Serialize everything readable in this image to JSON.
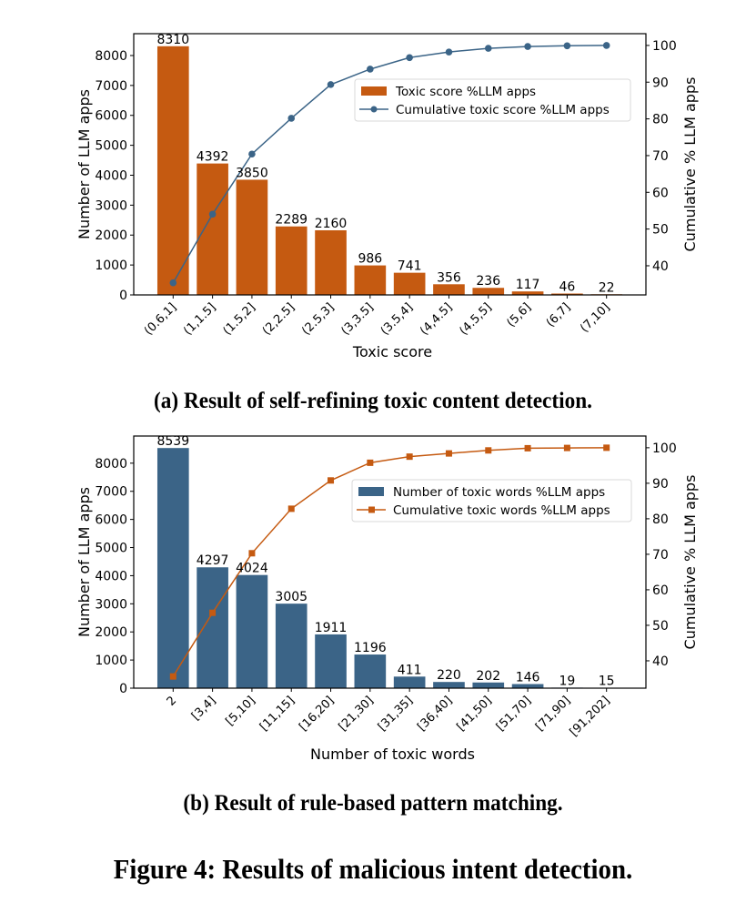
{
  "figure": {
    "caption": "Figure 4: Results of malicious intent detection."
  },
  "chart_data": [
    {
      "id": "a",
      "type": "bar",
      "caption": "(a) Result of self-refining toxic content detection.",
      "title": "",
      "xlabel": "Toxic score",
      "ylabel": "Number of LLM apps",
      "ylabel_right": "Cumulative % LLM apps",
      "categories": [
        "(0.6,1]",
        "(1,1.5]",
        "(1.5,2]",
        "(2,2.5]",
        "(2.5,3]",
        "(3,3.5]",
        "(3.5,4]",
        "(4,4.5]",
        "(4.5,5]",
        "(5,6]",
        "(6,7]",
        "(7,10]"
      ],
      "series": [
        {
          "name": "Toxic score %LLM apps",
          "type": "bar",
          "axis": "left",
          "color": "#c55a11",
          "values": [
            8310,
            4392,
            3850,
            2289,
            2160,
            986,
            741,
            356,
            236,
            117,
            46,
            22
          ],
          "data_labels": [
            "8310",
            "4392",
            "3850",
            "2289",
            "2160",
            "986",
            "741",
            "356",
            "236",
            "117",
            "46",
            "22"
          ]
        },
        {
          "name": "Cumulative toxic score %LLM apps",
          "type": "line",
          "axis": "right",
          "marker": "circle",
          "color": "#3b6487",
          "values": [
            35.35,
            54.04,
            70.42,
            80.16,
            89.35,
            93.54,
            96.69,
            98.21,
            99.21,
            99.71,
            99.91,
            100.0
          ]
        }
      ],
      "ylim": [
        0,
        8730
      ],
      "yticks": [
        0,
        1000,
        2000,
        3000,
        4000,
        5000,
        6000,
        7000,
        8000
      ],
      "ylim_right": [
        32.06,
        103.2
      ],
      "yticks_right": [
        40,
        50,
        60,
        70,
        80,
        90,
        100
      ],
      "legend": "upper-right",
      "grid": false
    },
    {
      "id": "b",
      "type": "bar",
      "caption": "(b) Result of rule-based pattern matching.",
      "title": "",
      "xlabel": "Number of toxic words",
      "ylabel": "Number of LLM apps",
      "ylabel_right": "Cumulative % LLM apps",
      "categories": [
        "2",
        "[3,4]",
        "[5,10]",
        "[11,15]",
        "[16,20]",
        "[21,30]",
        "[31,35]",
        "[36,40]",
        "[41,50]",
        "[51,70]",
        "[71,90]",
        "[91,202]"
      ],
      "series": [
        {
          "name": "Number of toxic words %LLM apps",
          "type": "bar",
          "axis": "left",
          "color": "#3b6487",
          "values": [
            8539,
            4297,
            4024,
            3005,
            1911,
            1196,
            411,
            220,
            202,
            146,
            19,
            15
          ],
          "data_labels": [
            "8539",
            "4297",
            "4024",
            "3005",
            "1911",
            "1196",
            "411",
            "220",
            "202",
            "146",
            "19",
            "15"
          ]
        },
        {
          "name": "Cumulative toxic words %LLM apps",
          "type": "line",
          "axis": "right",
          "marker": "square",
          "color": "#c55a11",
          "values": [
            35.6,
            53.52,
            70.29,
            82.82,
            90.79,
            95.77,
            97.49,
            98.4,
            99.25,
            99.86,
            99.94,
            100.0
          ]
        }
      ],
      "ylim": [
        0,
        8966
      ],
      "yticks": [
        0,
        1000,
        2000,
        3000,
        4000,
        5000,
        6000,
        7000,
        8000
      ],
      "ylim_right": [
        32.3,
        103.3
      ],
      "yticks_right": [
        40,
        50,
        60,
        70,
        80,
        90,
        100
      ],
      "legend": "upper-right",
      "grid": false
    }
  ]
}
